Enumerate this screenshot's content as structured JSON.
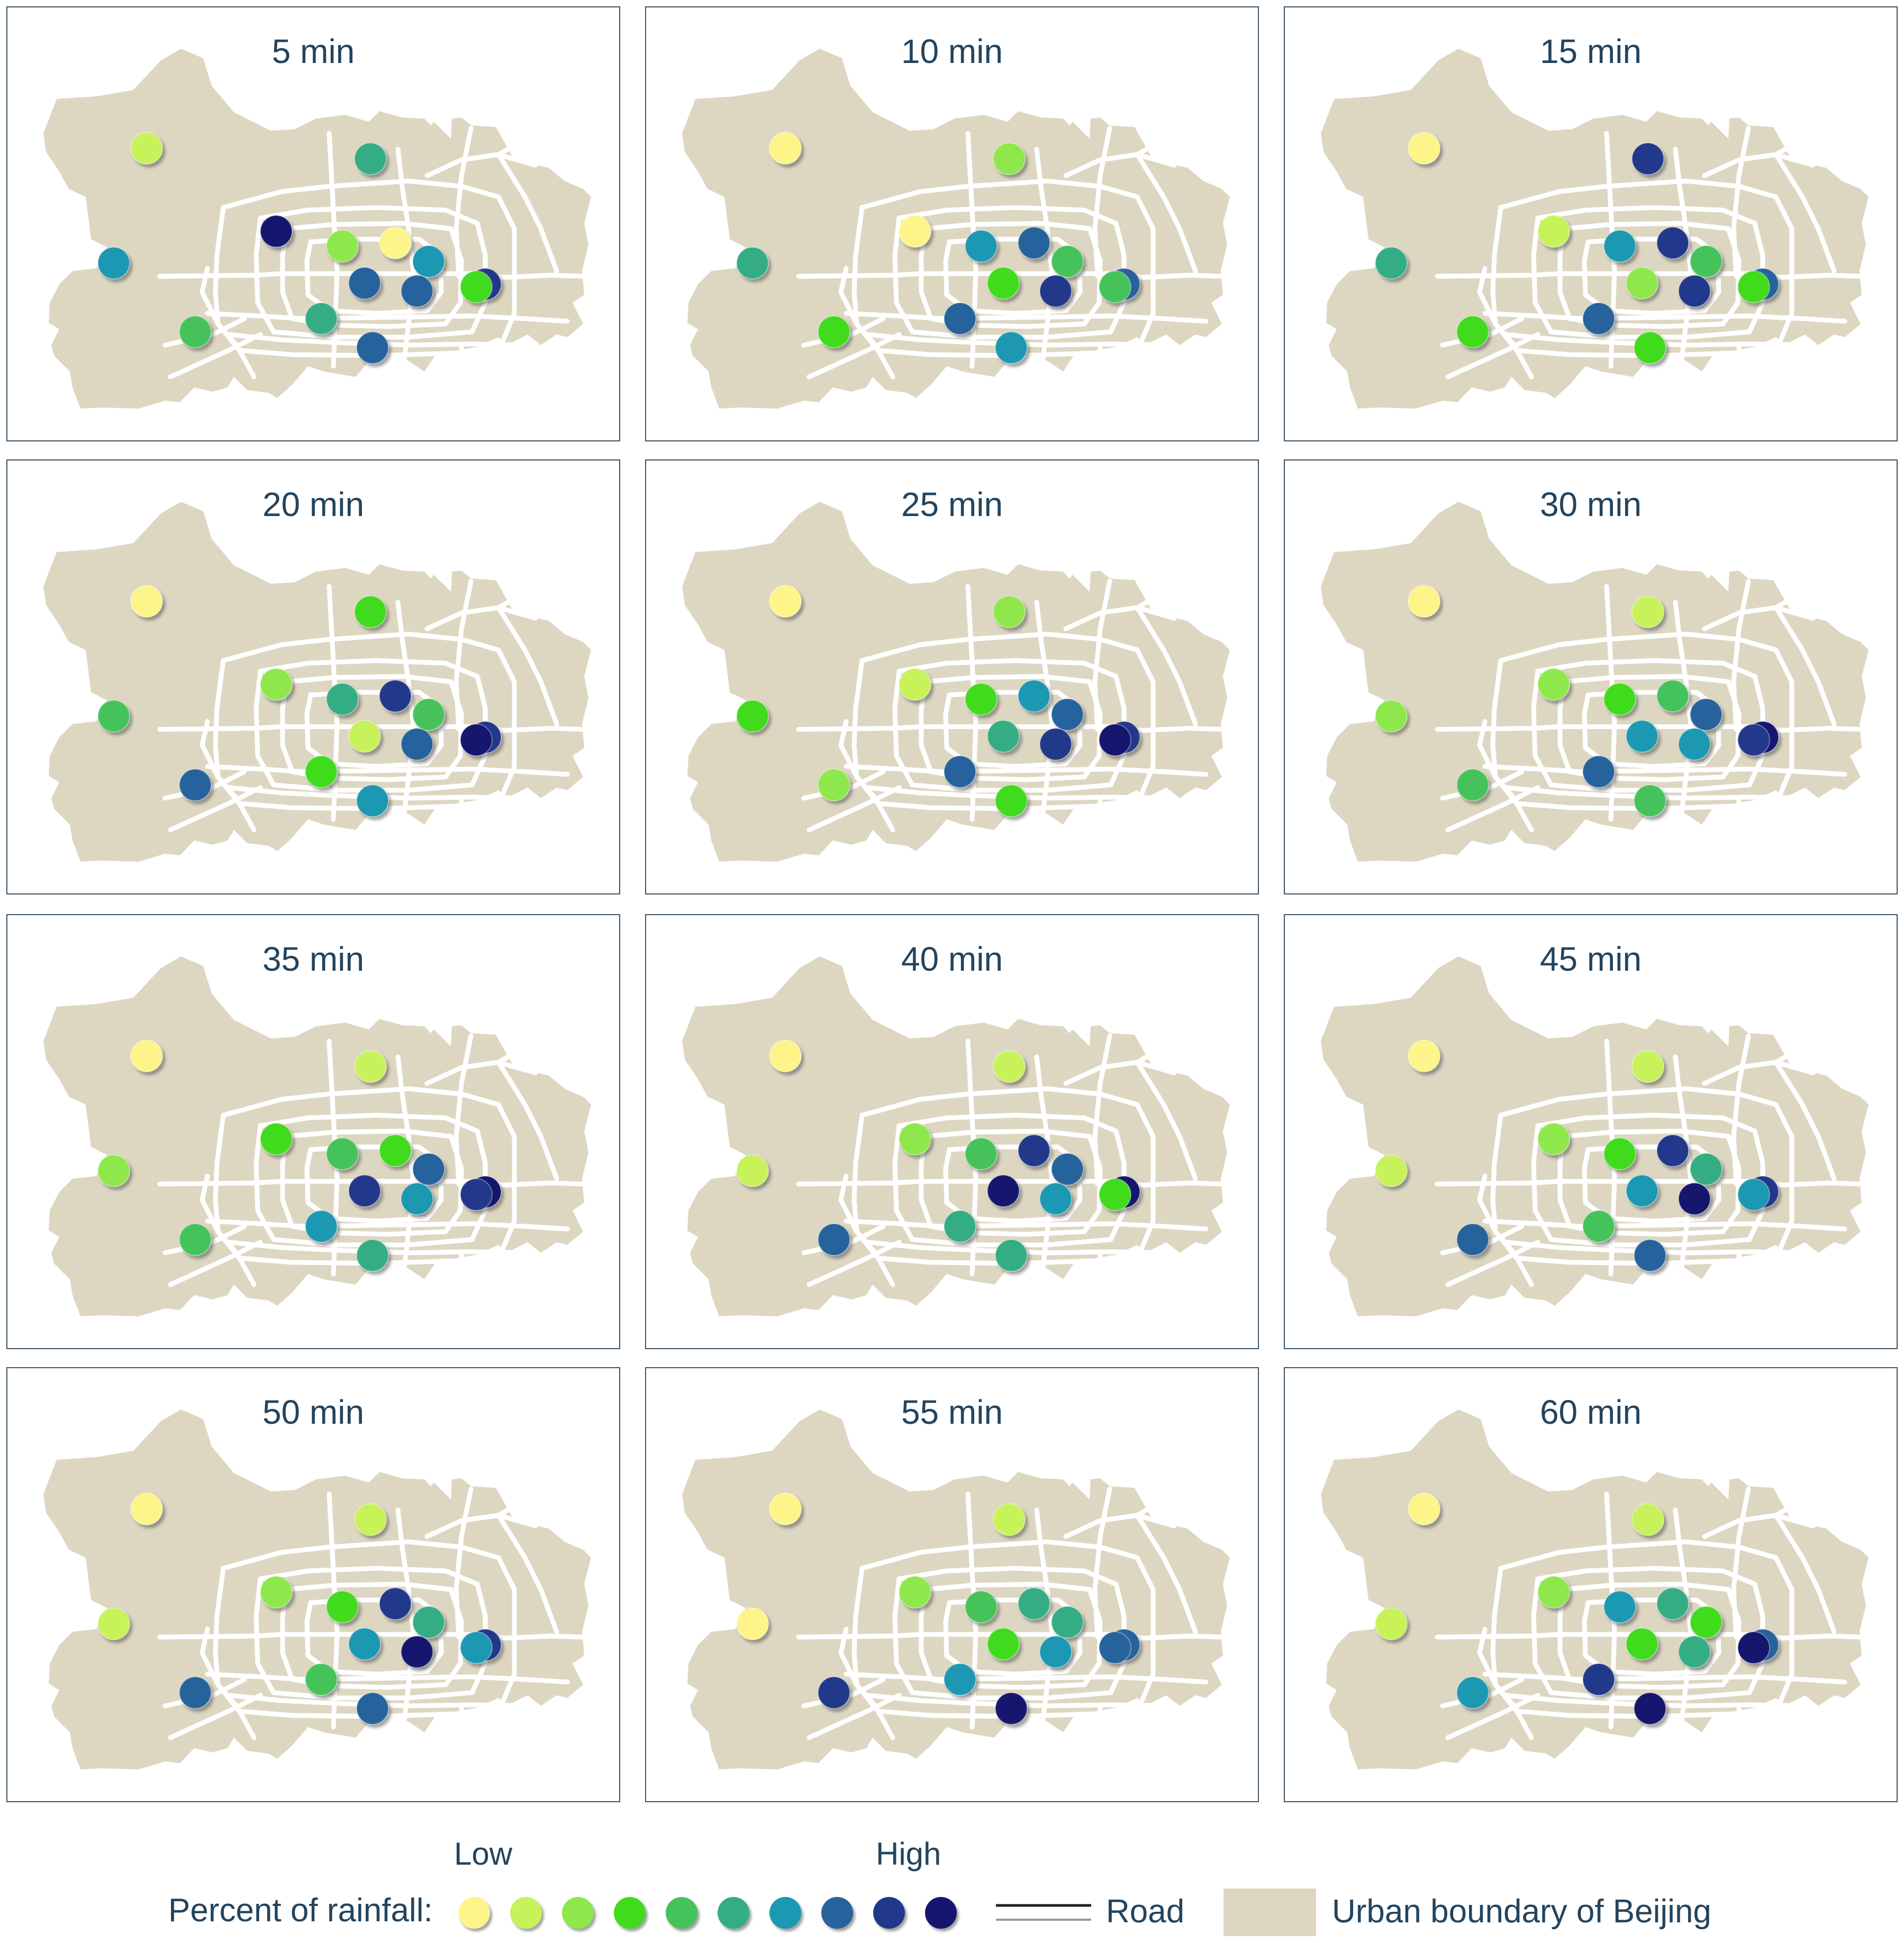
{
  "panels": [
    {
      "title": "5 min",
      "stations": [
        "c2",
        "c6",
        "c7",
        "c10",
        "c3",
        "c1",
        "c7",
        "c8",
        "c8",
        "c9",
        "c4",
        "c6",
        "c8",
        "c5"
      ]
    },
    {
      "title": "10 min",
      "stations": [
        "c1",
        "c3",
        "c6",
        "c1",
        "c7",
        "c8",
        "c5",
        "c4",
        "c9",
        "c8",
        "c5",
        "c8",
        "c7",
        "c4"
      ]
    },
    {
      "title": "15 min",
      "stations": [
        "c1",
        "c9",
        "c6",
        "c2",
        "c7",
        "c9",
        "c5",
        "c3",
        "c9",
        "c8",
        "c4",
        "c8",
        "c4",
        "c4"
      ]
    },
    {
      "title": "20 min",
      "stations": [
        "c1",
        "c4",
        "c5",
        "c3",
        "c6",
        "c9",
        "c5",
        "c2",
        "c8",
        "c9",
        "c10",
        "c4",
        "c7",
        "c8"
      ]
    },
    {
      "title": "25 min",
      "stations": [
        "c1",
        "c3",
        "c4",
        "c2",
        "c4",
        "c7",
        "c8",
        "c6",
        "c9",
        "c9",
        "c10",
        "c8",
        "c4",
        "c3"
      ]
    },
    {
      "title": "30 min",
      "stations": [
        "c1",
        "c2",
        "c3",
        "c3",
        "c4",
        "c5",
        "c8",
        "c7",
        "c7",
        "c10",
        "c9",
        "c8",
        "c5",
        "c5"
      ]
    },
    {
      "title": "35 min",
      "stations": [
        "c1",
        "c2",
        "c3",
        "c4",
        "c5",
        "c4",
        "c8",
        "c9",
        "c7",
        "c10",
        "c9",
        "c7",
        "c6",
        "c5"
      ]
    },
    {
      "title": "40 min",
      "stations": [
        "c1",
        "c2",
        "c2",
        "c3",
        "c5",
        "c9",
        "c8",
        "c10",
        "c7",
        "c10",
        "c4",
        "c6",
        "c6",
        "c8"
      ]
    },
    {
      "title": "45 min",
      "stations": [
        "c1",
        "c2",
        "c2",
        "c3",
        "c4",
        "c9",
        "c6",
        "c7",
        "c10",
        "c9",
        "c7",
        "c5",
        "c8",
        "c8"
      ]
    },
    {
      "title": "50 min",
      "stations": [
        "c1",
        "c2",
        "c2",
        "c3",
        "c4",
        "c9",
        "c6",
        "c7",
        "c10",
        "c9",
        "c7",
        "c5",
        "c8",
        "c8"
      ]
    },
    {
      "title": "55 min",
      "stations": [
        "c1",
        "c2",
        "c1",
        "c3",
        "c5",
        "c6",
        "c6",
        "c4",
        "c7",
        "c8",
        "c8",
        "c7",
        "c10",
        "c9"
      ]
    },
    {
      "title": "60 min",
      "stations": [
        "c1",
        "c2",
        "c2",
        "c3",
        "c7",
        "c6",
        "c4",
        "c4",
        "c6",
        "c8",
        "c10",
        "c9",
        "c10",
        "c7"
      ]
    }
  ],
  "legend": {
    "low_label": "Low",
    "high_label": "High",
    "rainfall_label": "Percent of rainfall:",
    "road_label": "Road",
    "boundary_label": "Urban boundary of Beijing"
  },
  "colors": {
    "c1": "#fdf58a",
    "c2": "#c8f25a",
    "c3": "#8ee84c",
    "c4": "#3fdb1e",
    "c5": "#44c35a",
    "c6": "#36ad84",
    "c7": "#1e98b2",
    "c8": "#25639c",
    "c9": "#22378a",
    "c10": "#13176e",
    "land": "#ddd7c2",
    "road": "#ffffff",
    "frame": "#3c5466",
    "title_text": "#23445e"
  }
}
